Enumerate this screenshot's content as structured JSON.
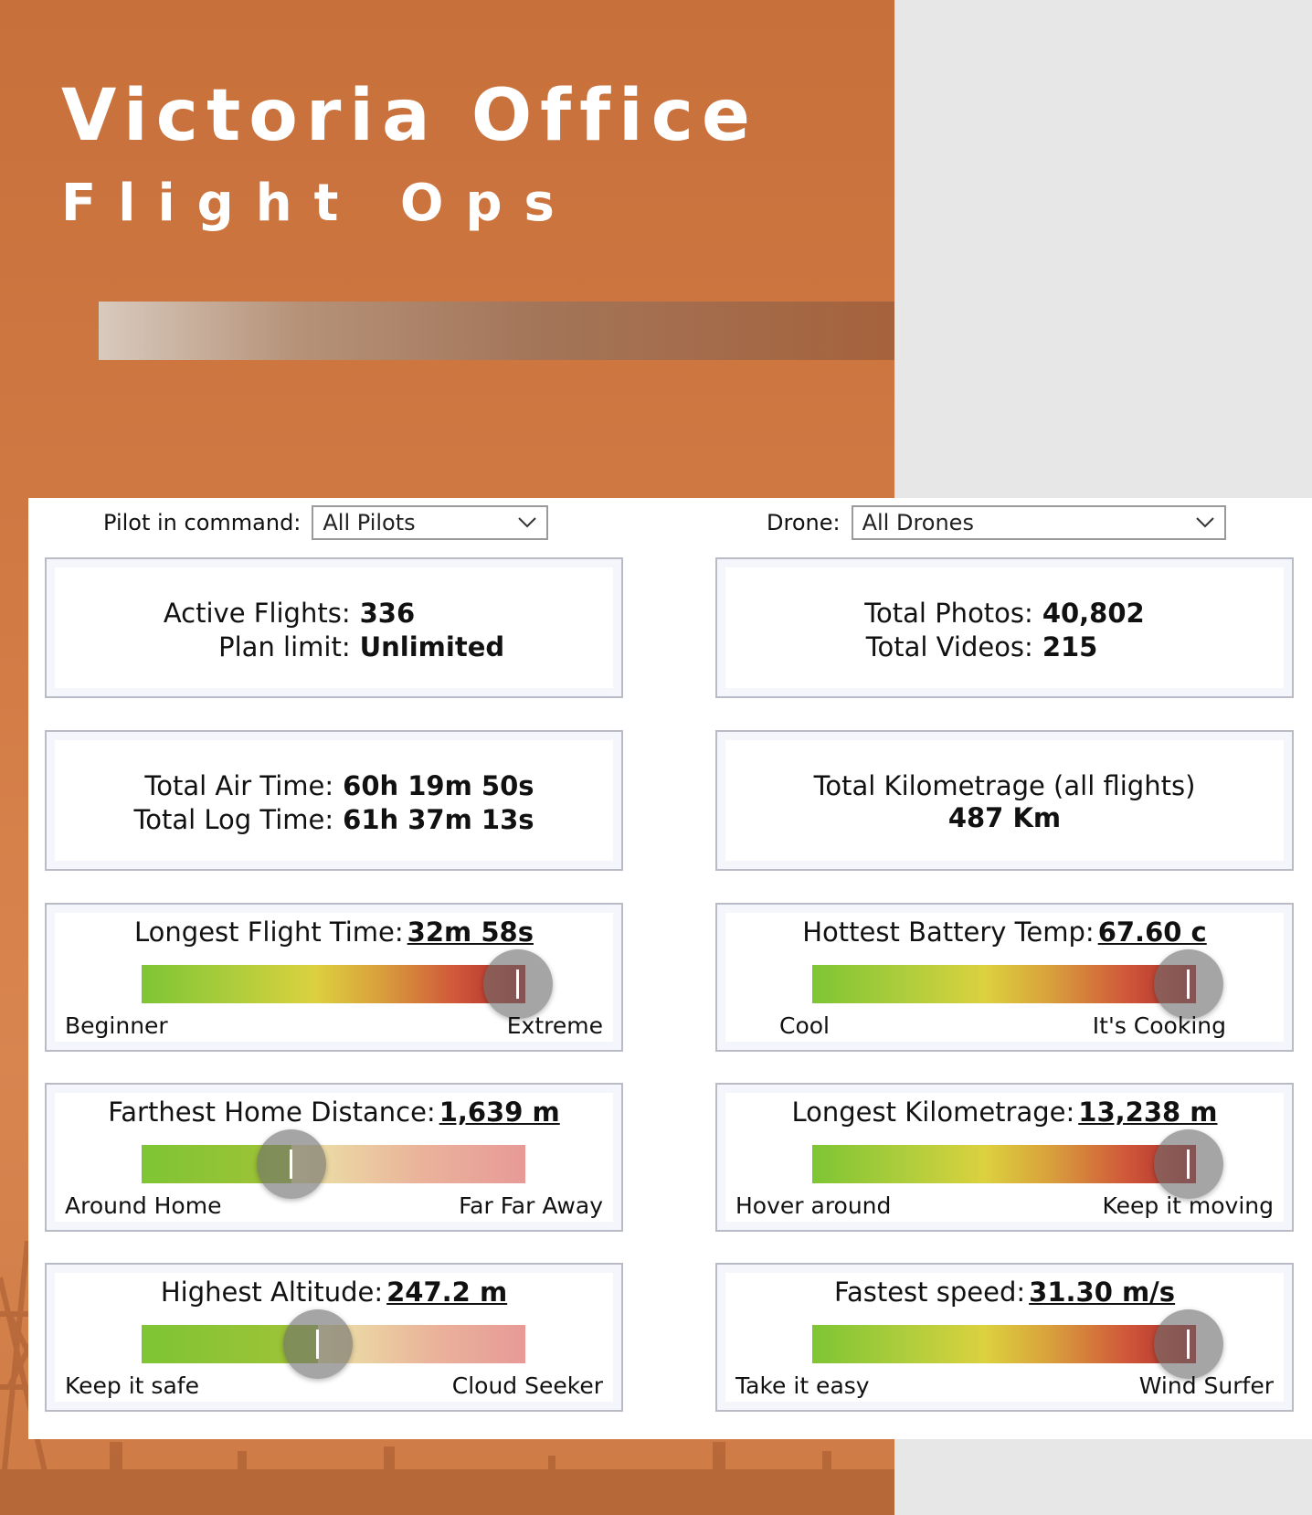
{
  "header": {
    "title": "Victoria Office",
    "subtitle": "Flight Ops"
  },
  "filters": {
    "pilot_label": "Pilot in command:",
    "pilot_value": "All Pilots",
    "drone_label": "Drone:",
    "drone_value": "All Drones"
  },
  "stats": {
    "active_flights_label": "Active Flights:",
    "active_flights_value": "336",
    "plan_limit_label": "Plan limit:",
    "plan_limit_value": "Unlimited",
    "total_photos_label": "Total Photos:",
    "total_photos_value": "40,802",
    "total_videos_label": "Total Videos:",
    "total_videos_value": "215",
    "total_air_time_label": "Total Air Time:",
    "total_air_time_value": "60h 19m 50s",
    "total_log_time_label": "Total Log Time:",
    "total_log_time_value": "61h 37m 13s",
    "total_km_label": "Total Kilometrage (all flights)",
    "total_km_value": "487 Km"
  },
  "gauges": [
    {
      "id": "longest-flight-time",
      "label": "Longest Flight Time:",
      "value": "32m 58s",
      "min_label": "Beginner",
      "max_label": "Extreme",
      "level": 1.0
    },
    {
      "id": "hottest-battery-temp",
      "label": "Hottest Battery Temp:",
      "value": "67.60 c",
      "min_label": "Cool",
      "max_label": "It's Cooking",
      "level": 1.0
    },
    {
      "id": "farthest-home-distance",
      "label": "Farthest Home Distance:",
      "value": "1,639 m",
      "min_label": "Around Home",
      "max_label": "Far Far Away",
      "level": 0.39
    },
    {
      "id": "longest-kilometrage",
      "label": "Longest Kilometrage:",
      "value": "13,238 m",
      "min_label": "Hover around",
      "max_label": "Keep it moving",
      "level": 1.0
    },
    {
      "id": "highest-altitude",
      "label": "Highest Altitude:",
      "value": "247.2 m",
      "min_label": "Keep it safe",
      "max_label": "Cloud Seeker",
      "level": 0.46
    },
    {
      "id": "fastest-speed",
      "label": "Fastest speed:",
      "value": "31.30 m/s",
      "min_label": "Take it easy",
      "max_label": "Wind Surfer",
      "level": 1.0
    }
  ],
  "icons": {
    "dropdown": "chevron-down-icon",
    "gauge_knob": "slider-knob-icon"
  },
  "colors": {
    "hero_orange": "#d27a44",
    "gauge_low": "#7ec534",
    "gauge_mid": "#dcd13e",
    "gauge_high": "#a92828"
  }
}
